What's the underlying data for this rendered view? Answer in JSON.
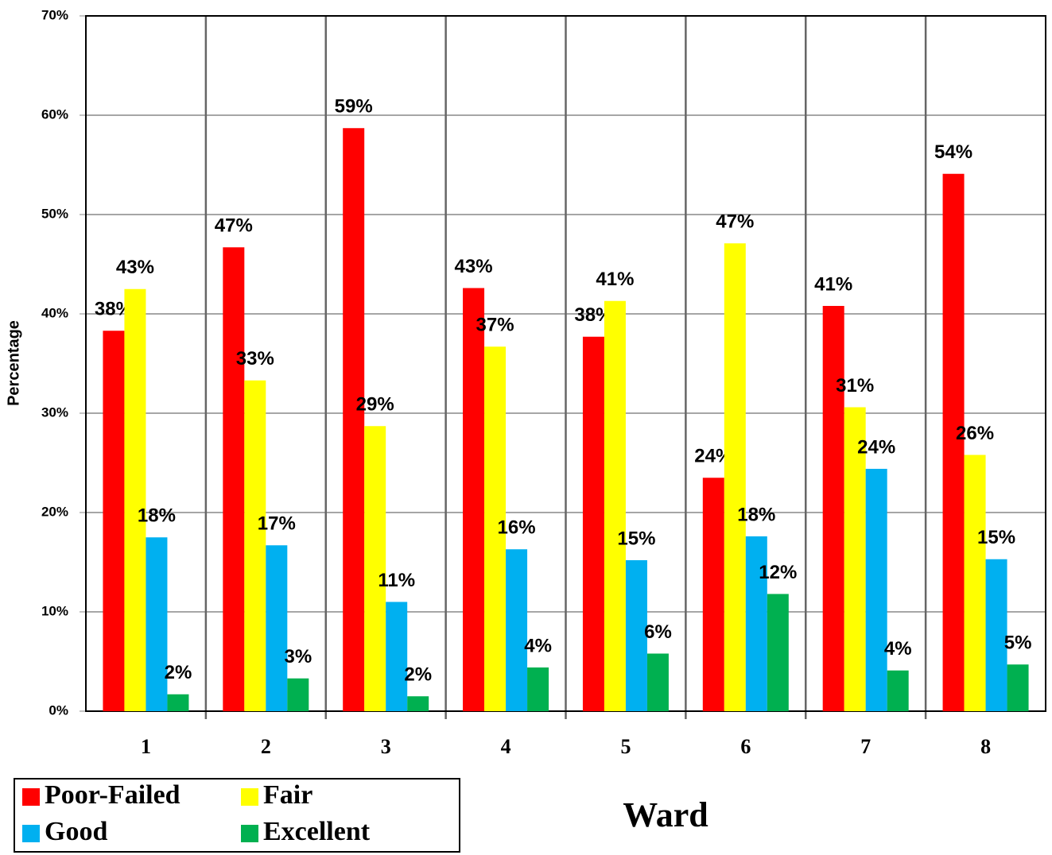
{
  "chart_data": {
    "type": "bar",
    "categories": [
      "1",
      "2",
      "3",
      "4",
      "5",
      "6",
      "7",
      "8"
    ],
    "series": [
      {
        "name": "Poor-Failed",
        "color": "#ff0000",
        "values": [
          38.3,
          46.7,
          58.7,
          42.6,
          37.7,
          23.5,
          40.8,
          54.1
        ],
        "value_labels": [
          "38%",
          "47%",
          "59%",
          "43%",
          "38%",
          "24%",
          "41%",
          "54%"
        ]
      },
      {
        "name": "Fair",
        "color": "#ffff00",
        "values": [
          42.5,
          33.3,
          28.7,
          36.7,
          41.3,
          47.1,
          30.6,
          25.8
        ],
        "value_labels": [
          "43%",
          "33%",
          "29%",
          "37%",
          "41%",
          "47%",
          "31%",
          "26%"
        ]
      },
      {
        "name": "Good",
        "color": "#00b0f0",
        "values": [
          17.5,
          16.7,
          11.0,
          16.3,
          15.2,
          17.6,
          24.4,
          15.3
        ],
        "value_labels": [
          "18%",
          "17%",
          "11%",
          "16%",
          "15%",
          "18%",
          "24%",
          "15%"
        ]
      },
      {
        "name": "Excellent",
        "color": "#00b050",
        "values": [
          1.7,
          3.3,
          1.5,
          4.4,
          5.8,
          11.8,
          4.1,
          4.7
        ],
        "value_labels": [
          "2%",
          "3%",
          "2%",
          "4%",
          "6%",
          "12%",
          "4%",
          "5%"
        ]
      }
    ],
    "ylim": [
      0,
      70
    ],
    "yticks": [
      {
        "value": 0,
        "label": "0%"
      },
      {
        "value": 10,
        "label": "10%"
      },
      {
        "value": 20,
        "label": "20%"
      },
      {
        "value": 30,
        "label": "30%"
      },
      {
        "value": 40,
        "label": "40%"
      },
      {
        "value": 50,
        "label": "50%"
      },
      {
        "value": 60,
        "label": "60%"
      },
      {
        "value": 70,
        "label": "70%"
      }
    ],
    "y_label": "Percentage",
    "x_label": "Ward",
    "grid": true,
    "legend": "bottom-left"
  }
}
